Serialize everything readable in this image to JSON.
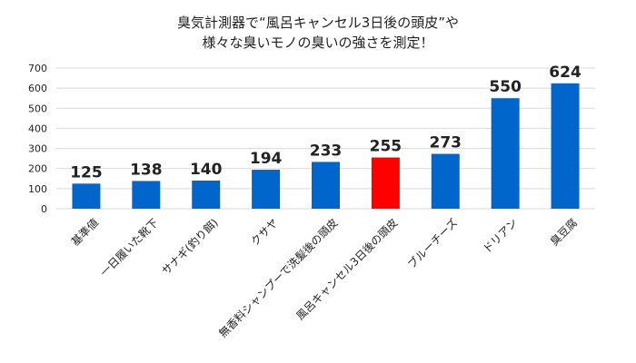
{
  "chart_data": {
    "type": "bar",
    "title_lines": [
      "臭気計測器で“風呂キャンセル3日後の頭皮”や",
      "様々な臭いモノの臭いの強さを測定！"
    ],
    "categories": [
      "基準値",
      "一日履いた靴下",
      "サナギ(釣り餌)",
      "クサヤ",
      "無香料シャンプーで洗髪後の頭皮",
      "風呂キャンセル3日後の頭皮",
      "ブルーチーズ",
      "ドリアン",
      "臭豆腐"
    ],
    "values": [
      125,
      138,
      140,
      194,
      233,
      255,
      273,
      550,
      624
    ],
    "data_labels": [
      "125",
      "138",
      "140",
      "194",
      "233",
      "255",
      "273",
      "550",
      "624"
    ],
    "highlight_index": 5,
    "ylim": [
      0,
      700
    ],
    "yticks": [
      "0",
      "100",
      "200",
      "300",
      "400",
      "500",
      "600",
      "700"
    ],
    "grid": true,
    "colors": {
      "bar": "#0066CC",
      "highlight": "#FF0000"
    }
  }
}
